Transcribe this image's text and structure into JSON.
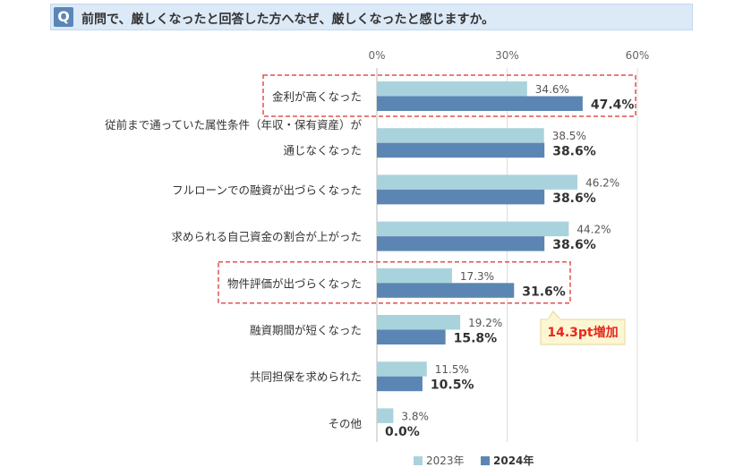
{
  "question": {
    "icon": "Q",
    "text": "前問で、厳しくなったと回答した方へなぜ、厳しくなったと感じますか。"
  },
  "colors": {
    "series_2023": "#a9d3dc",
    "series_2024": "#5b86b3",
    "highlight_border": "#e05050",
    "callout_fill": "#fdf6d3",
    "callout_text": "#e8281e"
  },
  "callout": {
    "text": "14.3pt増加"
  },
  "chart_data": {
    "type": "bar",
    "orientation": "horizontal",
    "xlim": [
      0,
      60
    ],
    "ticks": [
      "0%",
      "30%",
      "60%"
    ],
    "tick_values": [
      0,
      30,
      60
    ],
    "grid": true,
    "legend_position": "bottom",
    "categories": [
      [
        "金利が高くなった"
      ],
      [
        "従前まで通っていた属性条件（年収・保有資産）が",
        "通じなくなった"
      ],
      [
        "フルローンでの融資が出づらくなった"
      ],
      [
        "求められる自己資金の割合が上がった"
      ],
      [
        "物件評価が出づらくなった"
      ],
      [
        "融資期間が短くなった"
      ],
      [
        "共同担保を求められた"
      ],
      [
        "その他"
      ]
    ],
    "series": [
      {
        "name": "2023年",
        "values": [
          34.6,
          38.5,
          46.2,
          44.2,
          17.3,
          19.2,
          11.5,
          3.8
        ],
        "labels": [
          "34.6%",
          "38.5%",
          "46.2%",
          "44.2%",
          "17.3%",
          "19.2%",
          "11.5%",
          "3.8%"
        ]
      },
      {
        "name": "2024年",
        "values": [
          47.4,
          38.6,
          38.6,
          38.6,
          31.6,
          15.8,
          10.5,
          0.0
        ],
        "labels": [
          "47.4%",
          "38.6%",
          "38.6%",
          "38.6%",
          "31.6%",
          "15.8%",
          "10.5%",
          "0.0%"
        ]
      }
    ],
    "highlighted_categories": [
      0,
      4
    ]
  }
}
